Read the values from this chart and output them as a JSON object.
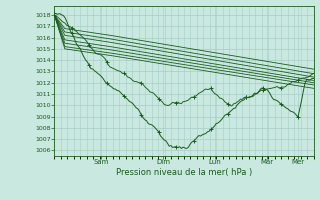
{
  "title": "",
  "xlabel": "Pression niveau de la mer( hPa )",
  "ylabel": "",
  "bg_color": "#c8e8e0",
  "grid_color": "#a8ccc8",
  "line_color": "#1a5c1a",
  "ylim": [
    1005.5,
    1018.8
  ],
  "yticks": [
    1006,
    1007,
    1008,
    1009,
    1010,
    1011,
    1012,
    1013,
    1014,
    1015,
    1016,
    1017,
    1018
  ],
  "day_labels": [
    "Sam",
    "Dim",
    "Lun",
    "Mar",
    "Mer"
  ],
  "day_positions": [
    0.18,
    0.42,
    0.62,
    0.82,
    0.94
  ],
  "xlim": [
    0,
    1
  ]
}
